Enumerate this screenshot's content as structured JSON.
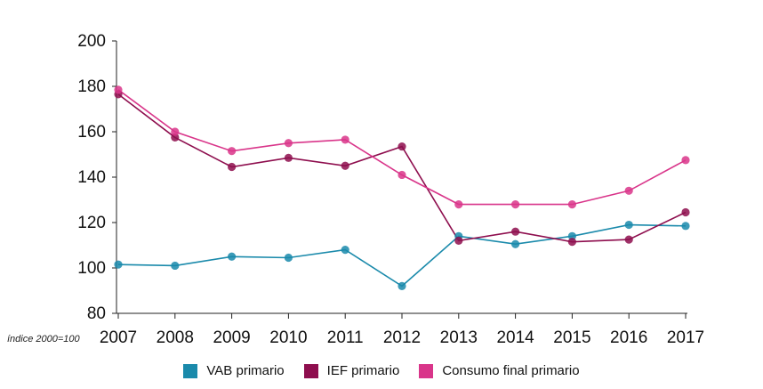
{
  "chart_data": {
    "type": "line",
    "title": "",
    "xlabel": "",
    "ylabel": "",
    "note": "índice 2000=100",
    "x": [
      "2007",
      "2008",
      "2009",
      "2010",
      "2011",
      "2012",
      "2013",
      "2014",
      "2015",
      "2016",
      "2017"
    ],
    "ylim": [
      80,
      200
    ],
    "yticks": [
      "200",
      "180",
      "160",
      "140",
      "120",
      "100",
      "80"
    ],
    "grid": false,
    "legend_position": "bottom",
    "series": [
      {
        "name": "VAB primario",
        "color": "#1a8aab",
        "values": [
          101.5,
          101,
          105,
          104.5,
          108,
          92,
          114,
          110.5,
          114,
          119,
          118.5
        ]
      },
      {
        "name": "IEF primario",
        "color": "#8e0e4e",
        "values": [
          176.5,
          157.5,
          144.5,
          148.5,
          145,
          153.5,
          112,
          116,
          111.5,
          112.5,
          124.5
        ]
      },
      {
        "name": "Consumo final primario",
        "color": "#d9358a",
        "values": [
          178.5,
          160,
          151.5,
          155,
          156.5,
          141,
          128,
          128,
          128,
          134,
          147.5
        ]
      }
    ]
  }
}
